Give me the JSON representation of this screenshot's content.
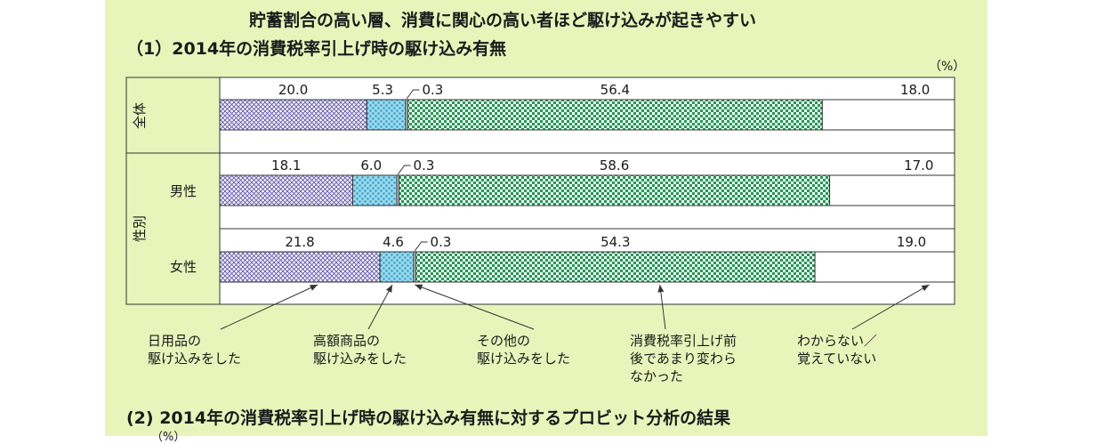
{
  "title": "貯蓄割合の高い層、消費に関心の高い者ほど駆け込みが起きやすい",
  "subtitle1": "（1）2014年の消費税率引上げ時の駆け込み有無",
  "subtitle2": "(2) 2014年の消費税率引上げ時の駆け込み有無に対するプロビット分析の結果",
  "unit": "（%）",
  "unit2": "（%）",
  "group_label": "性別",
  "colors": {
    "panel": "#e9f4bb",
    "daily": "#7b6fc0",
    "luxury": "#46b6d8",
    "other": "#dddddd",
    "unchanged": "#1f9a52",
    "unknown": "#ffffff"
  },
  "chart_data": {
    "type": "bar",
    "orientation": "horizontal",
    "stacked": true,
    "xlim": [
      0,
      100
    ],
    "categories": [
      "全体",
      "男性",
      "女性"
    ],
    "series": [
      {
        "name": "日用品の\n駆け込みをした",
        "values": [
          20.0,
          18.1,
          21.8
        ]
      },
      {
        "name": "高額商品の\n駆け込みをした",
        "values": [
          5.3,
          6.0,
          4.6
        ]
      },
      {
        "name": "その他の\n駆け込みをした",
        "values": [
          0.3,
          0.3,
          0.3
        ]
      },
      {
        "name": "消費税率引上げ前\n後であまり変わら\nなかった",
        "values": [
          56.4,
          58.6,
          54.3
        ]
      },
      {
        "name": "わからない／\n覚えていない",
        "values": [
          18.0,
          17.0,
          19.0
        ]
      }
    ],
    "data_labels": [
      [
        "20.0",
        "5.3",
        "0.3",
        "56.4",
        "18.0"
      ],
      [
        "18.1",
        "6.0",
        "0.3",
        "58.6",
        "17.0"
      ],
      [
        "21.8",
        "4.6",
        "0.3",
        "54.3",
        "19.0"
      ]
    ]
  }
}
